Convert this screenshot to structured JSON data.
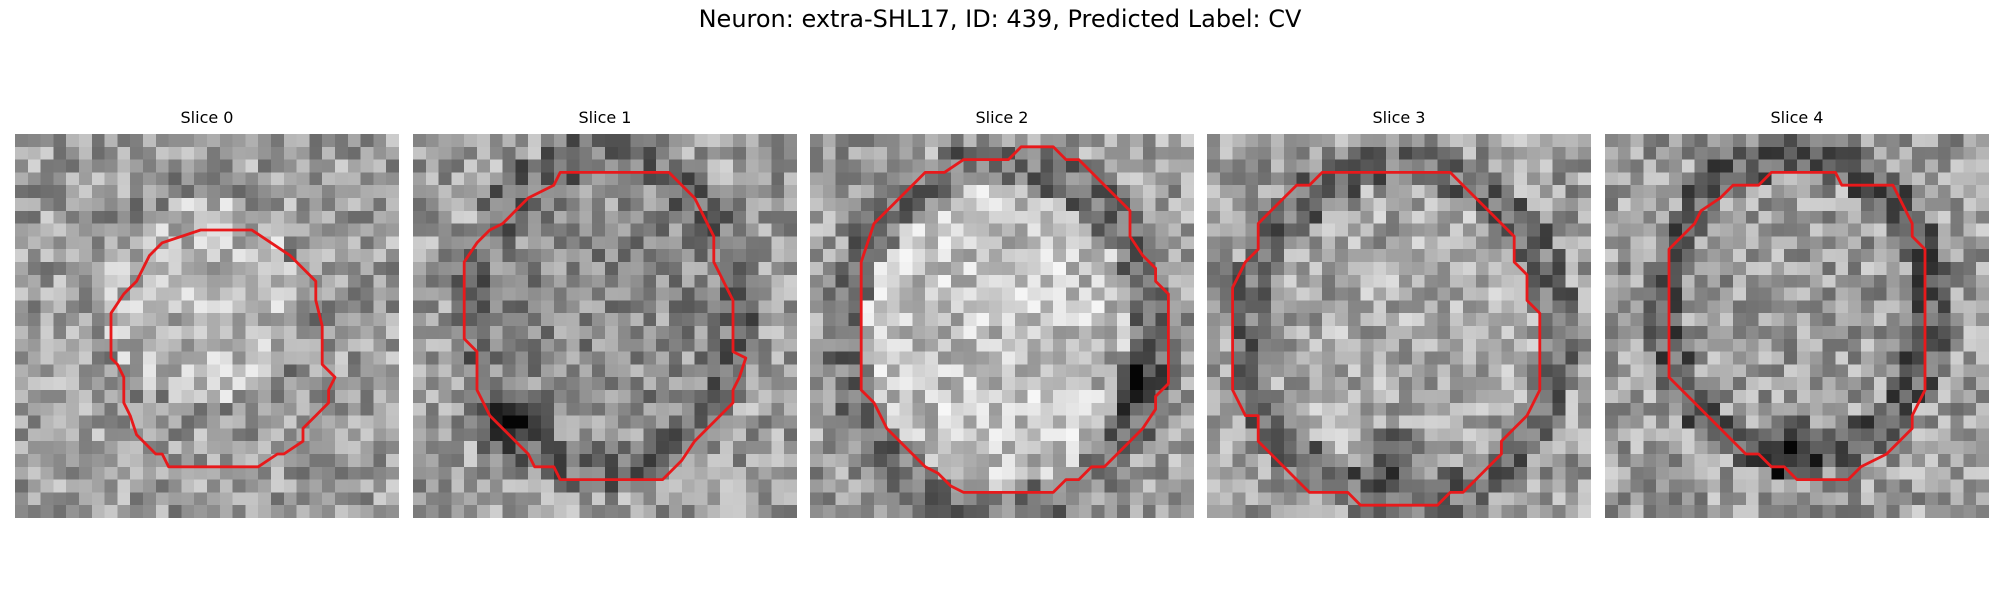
{
  "figure": {
    "title": "Neuron: extra-SHL17, ID: 439, Predicted Label: CV"
  },
  "slices": [
    {
      "title": "Slice 0"
    },
    {
      "title": "Slice 1"
    },
    {
      "title": "Slice 2"
    },
    {
      "title": "Slice 3"
    },
    {
      "title": "Slice 4"
    }
  ],
  "colors": {
    "contour": "#e8191b",
    "background": "#ffffff"
  }
}
